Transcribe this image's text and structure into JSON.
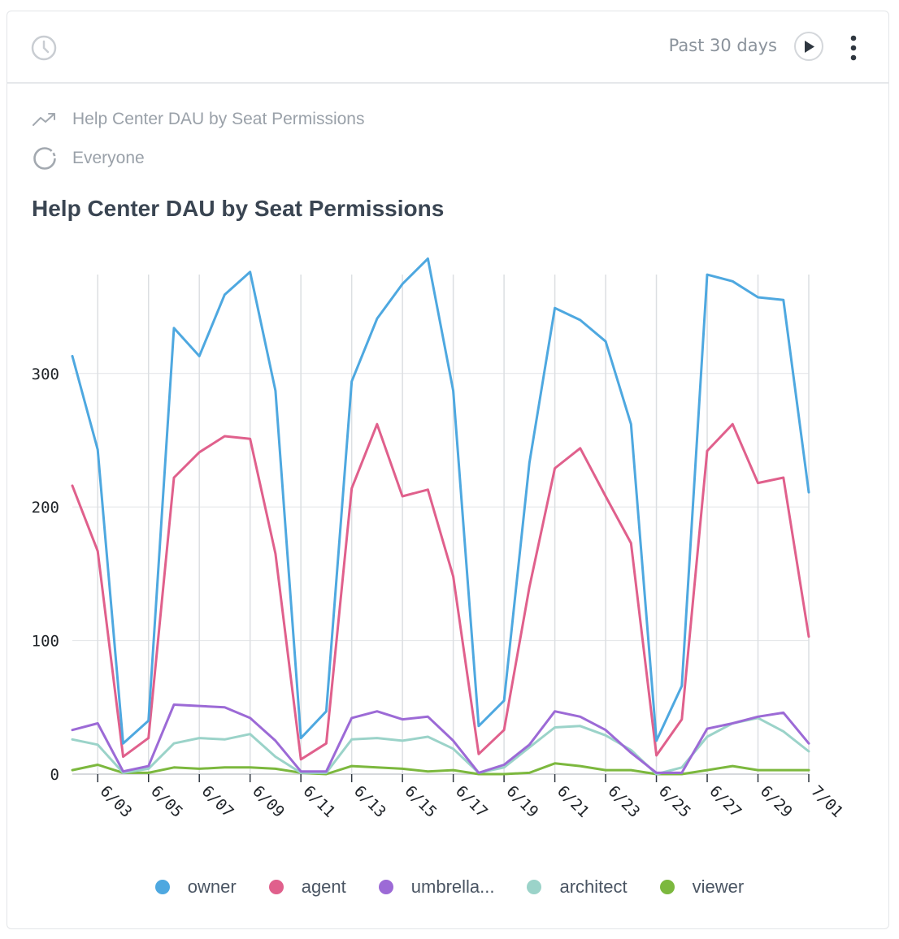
{
  "toolbar": {
    "range_label": "Past 30 days",
    "icons": {
      "history": "clock-icon",
      "run": "play-icon",
      "more": "vertical-ellipsis-icon"
    }
  },
  "meta": {
    "question_label": "Help Center DAU by Seat Permissions",
    "question_icon": "trend-line-icon",
    "segment_label": "Everyone",
    "segment_icon": "segment-ring-icon"
  },
  "chart_data": {
    "type": "line",
    "title": "Help Center DAU by Seat Permissions",
    "xlabel": "",
    "ylabel": "",
    "ylim": [
      0,
      385
    ],
    "yticks": [
      0,
      100,
      200,
      300
    ],
    "x": [
      "6/02",
      "6/03",
      "6/04",
      "6/05",
      "6/06",
      "6/07",
      "6/08",
      "6/09",
      "6/10",
      "6/11",
      "6/12",
      "6/13",
      "6/14",
      "6/15",
      "6/16",
      "6/17",
      "6/18",
      "6/19",
      "6/20",
      "6/21",
      "6/22",
      "6/23",
      "6/24",
      "6/25",
      "6/26",
      "6/27",
      "6/28",
      "6/29",
      "6/30",
      "7/01"
    ],
    "xtick_labels": [
      "6/03",
      "6/05",
      "6/07",
      "6/09",
      "6/11",
      "6/13",
      "6/15",
      "6/17",
      "6/19",
      "6/21",
      "6/23",
      "6/25",
      "6/27",
      "6/29",
      "7/01"
    ],
    "grid": true,
    "legend_position": "bottom",
    "series": [
      {
        "name": "owner",
        "color": "#4ea8e0",
        "values": [
          313,
          243,
          23,
          40,
          334,
          313,
          359,
          376,
          287,
          27,
          47,
          294,
          341,
          367,
          386,
          287,
          36,
          55,
          233,
          349,
          340,
          324,
          262,
          25,
          66,
          374,
          369,
          357,
          355,
          211
        ]
      },
      {
        "name": "agent",
        "color": "#e0608c",
        "values": [
          216,
          167,
          13,
          27,
          222,
          241,
          253,
          251,
          165,
          11,
          23,
          214,
          262,
          208,
          213,
          148,
          15,
          33,
          140,
          229,
          244,
          208,
          173,
          14,
          41,
          242,
          262,
          218,
          222,
          103
        ]
      },
      {
        "name": "umbrella...",
        "color": "#9c6ad6",
        "values": [
          33,
          38,
          2,
          6,
          52,
          51,
          50,
          42,
          25,
          2,
          2,
          42,
          47,
          41,
          43,
          25,
          1,
          7,
          22,
          47,
          43,
          33,
          16,
          1,
          1,
          34,
          38,
          43,
          46,
          23
        ]
      },
      {
        "name": "architect",
        "color": "#9bd3c9",
        "values": [
          26,
          22,
          1,
          4,
          23,
          27,
          26,
          30,
          13,
          1,
          1,
          26,
          27,
          25,
          28,
          19,
          1,
          5,
          20,
          35,
          36,
          29,
          18,
          0,
          5,
          28,
          38,
          42,
          32,
          17
        ]
      },
      {
        "name": "viewer",
        "color": "#7cb83e",
        "values": [
          3,
          7,
          1,
          1,
          5,
          4,
          5,
          5,
          4,
          1,
          0,
          6,
          5,
          4,
          2,
          3,
          0,
          0,
          1,
          8,
          6,
          3,
          3,
          0,
          0,
          3,
          6,
          3,
          3,
          3
        ]
      }
    ]
  }
}
